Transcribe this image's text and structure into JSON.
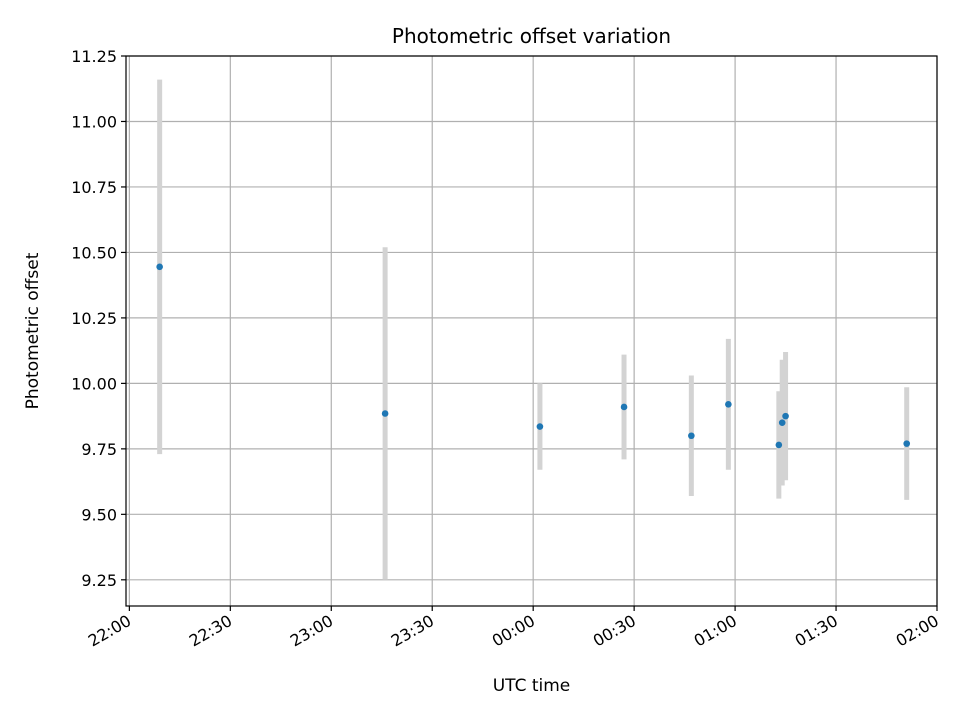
{
  "chart_data": {
    "type": "scatter",
    "title": "Photometric offset variation",
    "xlabel": "UTC time",
    "ylabel": "Photometric offset",
    "xlim": [
      "21:59",
      "02:00"
    ],
    "ylim": [
      9.15,
      11.25
    ],
    "x_ticks": [
      "22:00",
      "22:30",
      "23:00",
      "23:30",
      "00:00",
      "00:30",
      "01:00",
      "01:30",
      "02:00"
    ],
    "y_ticks": [
      "9.25",
      "9.50",
      "9.75",
      "10.00",
      "10.25",
      "10.50",
      "10.75",
      "11.00",
      "11.25"
    ],
    "grid": true,
    "marker_color": "#1f77b4",
    "errorbar_color": "#d3d3d3",
    "points": [
      {
        "t": "22:09",
        "y": 10.445,
        "err": 0.715
      },
      {
        "t": "23:16",
        "y": 9.885,
        "err": 0.635
      },
      {
        "t": "00:02",
        "y": 9.835,
        "err": 0.165
      },
      {
        "t": "00:27",
        "y": 9.91,
        "err": 0.2
      },
      {
        "t": "00:47",
        "y": 9.8,
        "err": 0.23
      },
      {
        "t": "00:58",
        "y": 9.92,
        "err": 0.25
      },
      {
        "t": "01:13",
        "y": 9.765,
        "err": 0.205
      },
      {
        "t": "01:14",
        "y": 9.85,
        "err": 0.24
      },
      {
        "t": "01:15",
        "y": 9.875,
        "err": 0.245
      },
      {
        "t": "01:51",
        "y": 9.77,
        "err": 0.215
      }
    ]
  }
}
